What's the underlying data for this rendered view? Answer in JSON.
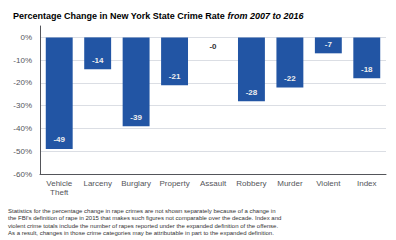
{
  "chart_data": {
    "type": "bar",
    "title": "Percentage Change in New York State Crime Rate ",
    "subtitle": "from 2007 to 2016",
    "categories": [
      "Vehicle\nTheft",
      "Larceny",
      "Burglary",
      "Property",
      "Assault",
      "Robbery",
      "Murder",
      "Violent",
      "Index"
    ],
    "values": [
      -49,
      -14,
      -39,
      -21,
      0,
      -28,
      -22,
      -7,
      -18
    ],
    "value_labels": [
      "-49",
      "-14",
      "-39",
      "-21",
      "-0",
      "-28",
      "-22",
      "-7",
      "-18"
    ],
    "data_labels": true,
    "color": "#2255a4",
    "ylim": [
      -60,
      5
    ],
    "yticks": [
      {
        "value": 0,
        "label": "0%"
      },
      {
        "value": -10,
        "label": "-10%"
      },
      {
        "value": -20,
        "label": "-20%"
      },
      {
        "value": -30,
        "label": "-30%"
      },
      {
        "value": -40,
        "label": "-40%"
      },
      {
        "value": -50,
        "label": "-50%"
      },
      {
        "value": -60,
        "label": "-60%"
      }
    ],
    "grid": true,
    "annotations": [
      "Statistics for the percentage change in rape crimes are not shown separately because of a change in\nthe FBI's definition of rape in 2015 that makes such figures not comparable over the decade. Index and\nviolent crime totals include the number of rapes reported under the expanded definition of the offense.\nAs a result, changes in those crime categories may be attributable in part to the expanded definition."
    ]
  }
}
